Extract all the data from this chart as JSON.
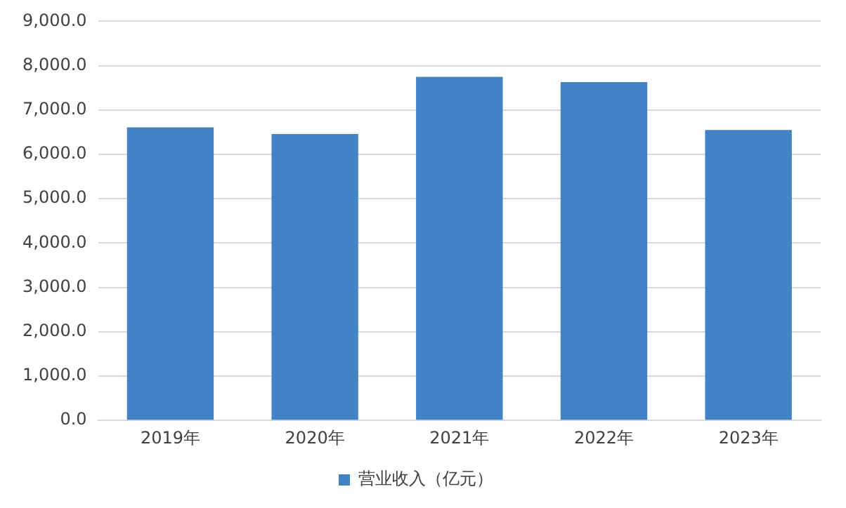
{
  "chart_data": {
    "type": "bar",
    "categories": [
      "2019年",
      "2020年",
      "2021年",
      "2022年",
      "2023年"
    ],
    "series": [
      {
        "name": "营业收入（亿元）",
        "color": "#4283c6",
        "values": [
          6610,
          6460,
          7750,
          7630,
          6550
        ]
      }
    ],
    "ylim": [
      0,
      9000
    ],
    "yticks": [
      {
        "value": 0,
        "label": "0.0"
      },
      {
        "value": 1000,
        "label": "1,000.0"
      },
      {
        "value": 2000,
        "label": "2,000.0"
      },
      {
        "value": 3000,
        "label": "3,000.0"
      },
      {
        "value": 4000,
        "label": "4,000.0"
      },
      {
        "value": 5000,
        "label": "5,000.0"
      },
      {
        "value": 6000,
        "label": "6,000.0"
      },
      {
        "value": 7000,
        "label": "7,000.0"
      },
      {
        "value": 8000,
        "label": "8,000.0"
      },
      {
        "value": 9000,
        "label": "9,000.0"
      }
    ],
    "grid": "y",
    "legend": "bottom"
  }
}
